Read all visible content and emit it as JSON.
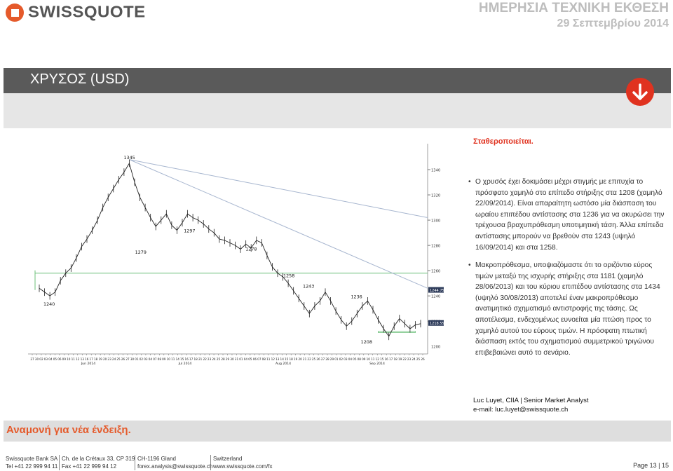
{
  "header": {
    "brand": "SWISSQUOTE",
    "report_title": "ΗΜΕΡΗΣΙΑ ΤΕΧΝΙΚΗ ΕΚΘΕΣΗ",
    "date": "29 Σεπτεμβρίου 2014"
  },
  "asset": {
    "title": "ΧΡΥΣΟΣ (USD)",
    "icon": "down-arrow-icon"
  },
  "summary": {
    "status": "Σταθεροποιείται.",
    "bullet1": "Ο χρυσός έχει δοκιμάσει μέχρι στιγμής με επιτυχία το πρόσφατο χαμηλό στο επίπεδο στήριξης στα 1208 (χαμηλό 22/09/2014). Είναι απαραίτητη ωστόσο μία διάσπαση του ωραίου επιπέδου αντίστασης στα 1236 για να ακυρώσει την τρέχουσα βραχυπρόθεσμη υποτιμητική τάση. Άλλα επίπεδα αντίστασης μπορούν να βρεθούν στα 1243 (υψηλό 16/09/2014) και στα 1258.",
    "bullet2": "Μακροπρόθεσμα, υποψιαζόμαστε ότι το οριζόντιο εύρος τιμών μεταξύ της ισχυρής στήριξης στα 1181 (χαμηλό 28/06/2013) και του κύριου επιπέδου αντίστασης στα 1434 (υψηλό 30/08/2013) αποτελεί έναν μακροπρόθεσμο ανατιμητικό σχηματισμό αντιστροφής της τάσης. Ως αποτέλεσμα, ενδεχομένως ευνοείται μία πτώση προς το χαμηλό αυτού του εύρους τιμών. Η πρόσφατη πτωτική διάσπαση εκτός του σχηματισμού συμμετρικού τριγώνου επιβεβαιώνει αυτό το σενάριο."
  },
  "analyst": {
    "line1": "Luc Luyet, CIIA | Senior Market Analyst",
    "line2": "e-mail: luc.luyet@swissquote.ch"
  },
  "footer": {
    "message": "Αναμονή για νέα ένδειξη.",
    "company": "Swissquote Bank SA",
    "tel": "Tel +41 22 999 94 11",
    "address": "Ch. de la Crétaux 33, CP 319",
    "fax": "Fax +41 22 999 94 12",
    "city": "CH-1196 Gland",
    "email": "forex.analysis@swissquote.ch",
    "country": "Switzerland",
    "web": "www.swissquote.com/fx",
    "page": "Page 13 | 15"
  },
  "colors": {
    "accent": "#e55a2b",
    "red": "#e0321f",
    "title_bar": "#5a5a5a",
    "support_line": "#6cc07a",
    "trend_line": "#a7b6cf"
  },
  "chart_data": {
    "type": "line",
    "series": [
      {
        "values": [
          1246,
          1243,
          1240,
          1243,
          1252,
          1258,
          1262,
          1270,
          1279,
          1285,
          1292,
          1300,
          1310,
          1318,
          1325,
          1332,
          1338,
          1345,
          1330,
          1318,
          1310,
          1302,
          1295,
          1300,
          1305,
          1296,
          1292,
          1298,
          1305,
          1302,
          1300,
          1297,
          1293,
          1290,
          1285,
          1284,
          1282,
          1280,
          1277,
          1281,
          1278,
          1284,
          1282,
          1272,
          1263,
          1258,
          1255,
          1250,
          1244,
          1238,
          1232,
          1226,
          1232,
          1236,
          1243,
          1236,
          1228,
          1221,
          1216,
          1220,
          1226,
          1232,
          1236,
          1229,
          1221,
          1214,
          1208,
          1216,
          1222,
          1218,
          1214,
          1217,
          1218
        ]
      }
    ],
    "x_tick_labels": [
      "27",
      "30",
      "02",
      "03",
      "04",
      "05",
      "06",
      "09",
      "10",
      "11",
      "12",
      "13",
      "16",
      "17",
      "18",
      "19",
      "20",
      "23",
      "24",
      "25",
      "26",
      "27",
      "30",
      "01",
      "02",
      "03",
      "04",
      "07",
      "08",
      "09",
      "10",
      "11",
      "14",
      "15",
      "16",
      "17",
      "18",
      "21",
      "22",
      "23",
      "24",
      "25",
      "28",
      "29",
      "30",
      "31",
      "01",
      "04",
      "05",
      "06",
      "07",
      "08",
      "11",
      "12",
      "13",
      "14",
      "15",
      "18",
      "19",
      "20",
      "21",
      "22",
      "25",
      "26",
      "27",
      "28",
      "29",
      "01",
      "02",
      "03",
      "04",
      "05",
      "08",
      "09",
      "10",
      "11",
      "12",
      "15",
      "16",
      "17",
      "18",
      "19",
      "22",
      "23",
      "24",
      "25",
      "26"
    ],
    "x_month_labels": [
      "Jun 2014",
      "Jul 2014",
      "Aug 2014",
      "Sep 2014"
    ],
    "y_ticks": [
      1340,
      1320,
      1300,
      1280,
      1260,
      1240,
      1220
    ],
    "y_tick_partial": "1200",
    "ylim": [
      1194,
      1355
    ],
    "price_tags": [
      "1244.75",
      "1218.55"
    ],
    "annotations": [
      {
        "label": "1345",
        "value": 1345
      },
      {
        "label": "1279",
        "value": 1279
      },
      {
        "label": "1297",
        "value": 1297
      },
      {
        "label": "1278",
        "value": 1278
      },
      {
        "label": "1258",
        "value": 1258
      },
      {
        "label": "1243",
        "value": 1243
      },
      {
        "label": "1236",
        "value": 1236
      },
      {
        "label": "1240",
        "value": 1240
      },
      {
        "label": "1208",
        "value": 1208
      }
    ],
    "support_level": 1258,
    "grid": false
  }
}
